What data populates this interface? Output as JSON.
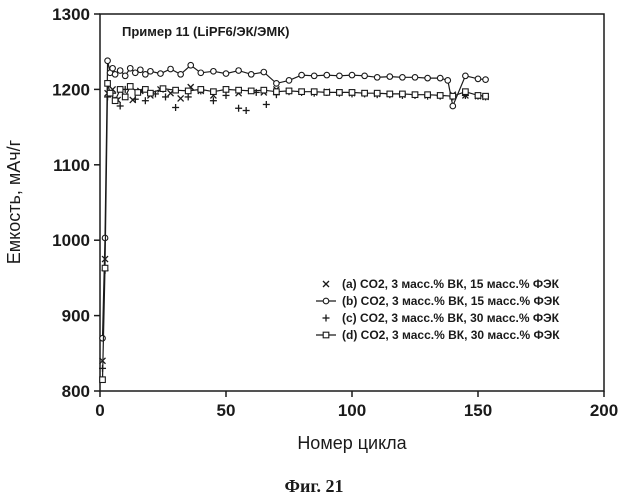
{
  "chart_data": {
    "type": "line",
    "title": "Пример 11 (LiPF6/ЭК/ЭМК)",
    "xlabel": "Номер цикла",
    "ylabel": "Емкость, мАч/г",
    "caption": "Фиг. 21",
    "xlim": [
      0,
      200
    ],
    "ylim": [
      800,
      1300
    ],
    "xticks": [
      0,
      50,
      100,
      150,
      200
    ],
    "yticks": [
      800,
      900,
      1000,
      1100,
      1200,
      1300
    ],
    "grid": false,
    "legend_position": "bottom-right",
    "series": [
      {
        "name": "(a) CO2, 3 масс.% ВК, 15 масс.% ФЭК",
        "marker": "x",
        "line": false,
        "color": "#1a1a1a",
        "x": [
          1,
          2,
          3,
          5,
          7,
          10,
          13,
          16,
          20,
          24,
          28,
          32,
          36,
          40,
          45,
          50,
          55,
          60,
          65,
          70,
          75,
          80,
          85,
          90,
          95,
          100,
          105,
          110,
          115,
          120,
          125,
          130,
          135,
          140,
          145,
          150,
          153
        ],
        "y": [
          840,
          975,
          1195,
          1200,
          1186,
          1190,
          1186,
          1198,
          1192,
          1200,
          1195,
          1188,
          1203,
          1198,
          1192,
          1200,
          1195,
          1198,
          1196,
          1200,
          1198,
          1197,
          1196,
          1197,
          1196,
          1195,
          1195,
          1194,
          1194,
          1193,
          1193,
          1192,
          1192,
          1193,
          1192,
          1191,
          1190
        ]
      },
      {
        "name": "(b) CO2, 3 масс.% ВК, 15 масс.% ФЭК",
        "marker": "o",
        "line": true,
        "color": "#1a1a1a",
        "x": [
          1,
          2,
          3,
          4,
          5,
          6,
          8,
          10,
          12,
          14,
          16,
          18,
          20,
          24,
          28,
          32,
          36,
          40,
          45,
          50,
          55,
          60,
          65,
          70,
          75,
          80,
          85,
          90,
          95,
          100,
          105,
          110,
          115,
          120,
          125,
          130,
          135,
          138,
          140,
          145,
          150,
          153
        ],
        "y": [
          870,
          1003,
          1238,
          1222,
          1228,
          1220,
          1225,
          1218,
          1228,
          1222,
          1226,
          1220,
          1224,
          1221,
          1227,
          1220,
          1232,
          1222,
          1224,
          1221,
          1225,
          1220,
          1223,
          1208,
          1212,
          1219,
          1218,
          1219,
          1218,
          1219,
          1218,
          1216,
          1217,
          1216,
          1216,
          1215,
          1215,
          1212,
          1178,
          1218,
          1214,
          1213
        ]
      },
      {
        "name": "(c) CO2, 3 масс.% ВК, 30 масс.% ФЭК",
        "marker": "+",
        "line": false,
        "color": "#1a1a1a",
        "x": [
          1,
          2,
          3,
          5,
          8,
          10,
          14,
          18,
          22,
          26,
          30,
          35,
          40,
          45,
          50,
          55,
          58,
          62,
          66,
          70,
          75,
          80,
          85,
          90,
          95,
          100,
          105,
          110,
          115,
          120,
          125,
          130,
          135,
          140,
          145,
          150,
          153
        ],
        "y": [
          830,
          960,
          1190,
          1195,
          1178,
          1200,
          1187,
          1185,
          1194,
          1190,
          1176,
          1190,
          1198,
          1185,
          1192,
          1175,
          1172,
          1196,
          1180,
          1193,
          1197,
          1196,
          1195,
          1196,
          1195,
          1194,
          1194,
          1193,
          1193,
          1192,
          1192,
          1191,
          1191,
          1190,
          1192,
          1191,
          1190
        ]
      },
      {
        "name": "(d) CO2, 3 масс.% ВК, 30 масс.% ФЭК",
        "marker": "s",
        "line": true,
        "color": "#1a1a1a",
        "x": [
          1,
          2,
          3,
          4,
          6,
          8,
          10,
          12,
          15,
          18,
          20,
          25,
          30,
          35,
          40,
          45,
          50,
          55,
          60,
          65,
          70,
          75,
          80,
          85,
          90,
          95,
          100,
          105,
          110,
          115,
          120,
          125,
          130,
          135,
          140,
          145,
          150,
          153
        ],
        "y": [
          815,
          963,
          1208,
          1195,
          1185,
          1200,
          1190,
          1204,
          1196,
          1200,
          1195,
          1201,
          1199,
          1198,
          1200,
          1197,
          1200,
          1199,
          1198,
          1199,
          1197,
          1198,
          1197,
          1197,
          1196,
          1196,
          1196,
          1195,
          1195,
          1194,
          1194,
          1193,
          1193,
          1192,
          1191,
          1197,
          1192,
          1191
        ]
      }
    ]
  }
}
